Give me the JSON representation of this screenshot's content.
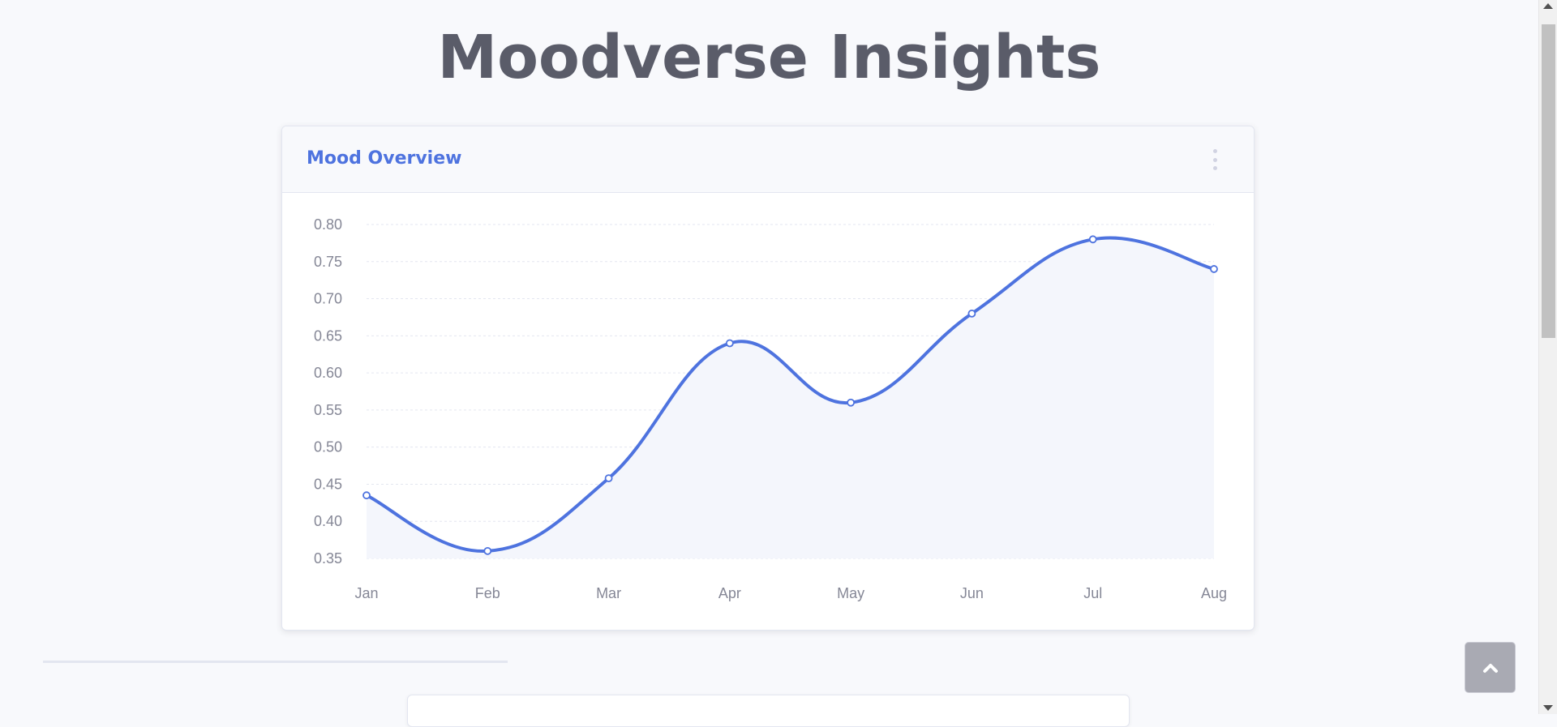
{
  "page": {
    "title": "Moodverse Insights"
  },
  "card": {
    "title": "Mood Overview",
    "menu_icon": "kebab-menu-icon"
  },
  "scroll_top": {
    "icon": "chevron-up-icon"
  },
  "colors": {
    "accent": "#4e73df",
    "text": "#5a5c69",
    "muted": "#858796",
    "background": "#f8f9fc",
    "fill": "#f4f6fc"
  },
  "chart_data": {
    "type": "line",
    "categories": [
      "Jan",
      "Feb",
      "Mar",
      "Apr",
      "May",
      "Jun",
      "Jul",
      "Aug"
    ],
    "series": [
      {
        "values": [
          0.435,
          0.36,
          0.458,
          0.64,
          0.56,
          0.68,
          0.78,
          0.74
        ]
      }
    ],
    "ylim": [
      0.35,
      0.8
    ],
    "yticks": [
      "0.35",
      "0.40",
      "0.45",
      "0.50",
      "0.55",
      "0.60",
      "0.65",
      "0.70",
      "0.75",
      "0.80"
    ],
    "title": "",
    "xlabel": "",
    "ylabel": "",
    "grid": "horizontal dashed",
    "area_fill": true,
    "smooth": true
  }
}
